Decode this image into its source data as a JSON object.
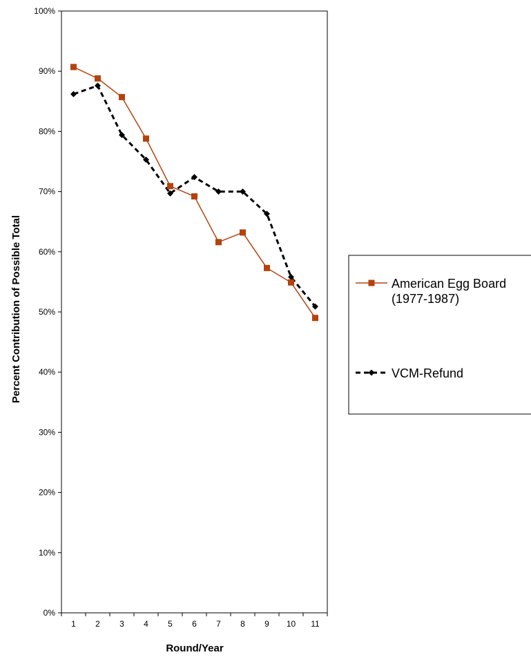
{
  "chart_data": {
    "type": "line",
    "xlabel": "Round/Year",
    "ylabel": "Percent Contribution of Possible Total",
    "x": [
      1,
      2,
      3,
      4,
      5,
      6,
      7,
      8,
      9,
      10,
      11
    ],
    "ylim": [
      0,
      100
    ],
    "y_ticks": [
      "0%",
      "10%",
      "20%",
      "30%",
      "40%",
      "50%",
      "60%",
      "70%",
      "80%",
      "90%",
      "100%"
    ],
    "grid": false,
    "legend_position": "right",
    "series": [
      {
        "name": "American Egg Board (1977-1987)",
        "legend_lines": [
          "American Egg Board",
          "(1977-1987)"
        ],
        "values": [
          90.7,
          88.8,
          85.7,
          78.8,
          70.9,
          69.2,
          61.6,
          63.2,
          57.3,
          54.9,
          49.0
        ],
        "color": "#b5420e",
        "marker": "square",
        "line_style": "solid"
      },
      {
        "name": "VCM-Refund",
        "legend_lines": [
          "VCM-Refund"
        ],
        "values": [
          86.2,
          87.6,
          79.4,
          75.3,
          69.7,
          72.4,
          70.0,
          70.0,
          66.3,
          55.8,
          50.9
        ],
        "color": "#000000",
        "marker": "diamond",
        "line_style": "dashed"
      }
    ]
  }
}
